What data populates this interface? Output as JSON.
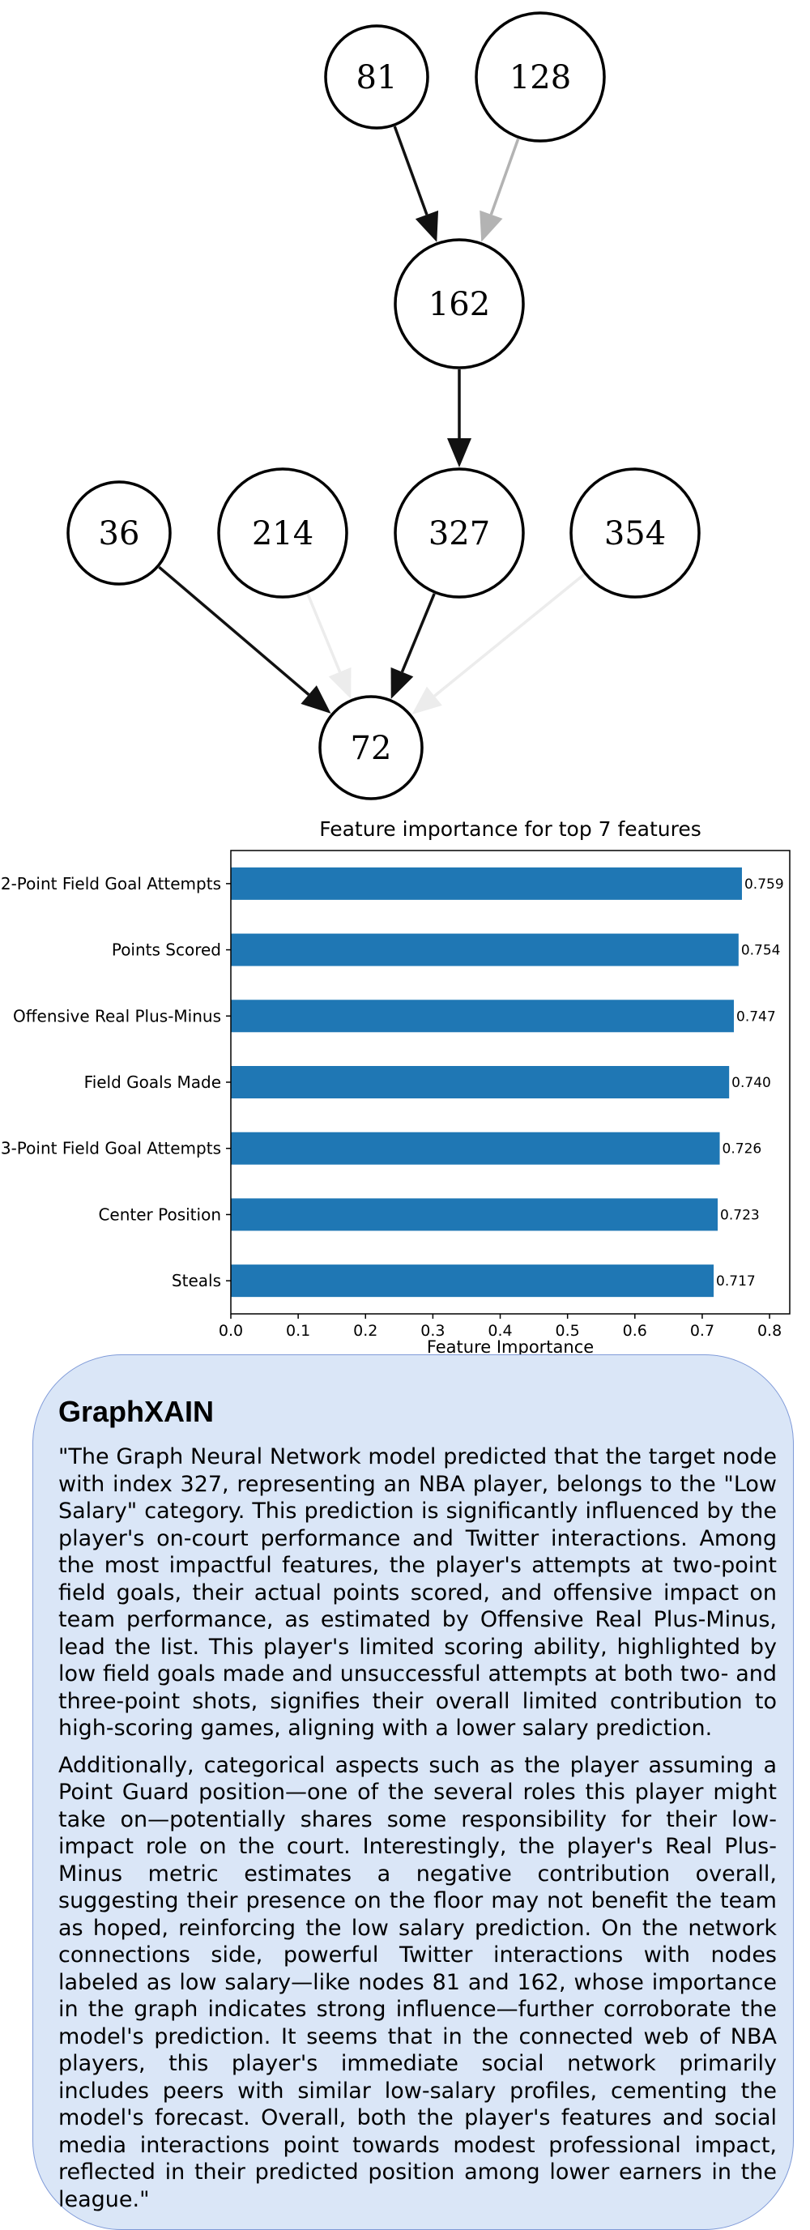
{
  "graph": {
    "nodes": [
      {
        "id": "n81",
        "label": "81"
      },
      {
        "id": "n128",
        "label": "128"
      },
      {
        "id": "n162",
        "label": "162"
      },
      {
        "id": "n36",
        "label": "36"
      },
      {
        "id": "n214",
        "label": "214"
      },
      {
        "id": "n327",
        "label": "327"
      },
      {
        "id": "n354",
        "label": "354"
      },
      {
        "id": "n72",
        "label": "72"
      }
    ],
    "edges": [
      {
        "from": "n81",
        "to": "n162",
        "color": "#111111"
      },
      {
        "from": "n128",
        "to": "n162",
        "color": "#b3b3b3"
      },
      {
        "from": "n162",
        "to": "n327",
        "color": "#111111"
      },
      {
        "from": "n36",
        "to": "n72",
        "color": "#111111"
      },
      {
        "from": "n214",
        "to": "n72",
        "color": "#ececec"
      },
      {
        "from": "n327",
        "to": "n72",
        "color": "#111111"
      },
      {
        "from": "n354",
        "to": "n72",
        "color": "#ececec"
      }
    ]
  },
  "chart_data": {
    "type": "bar",
    "orientation": "horizontal",
    "title": "Feature importance for top 7 features",
    "xlabel": "Feature Importance",
    "ylabel": "",
    "xlim": [
      0,
      0.83
    ],
    "xticks": [
      "0.0",
      "0.1",
      "0.2",
      "0.3",
      "0.4",
      "0.5",
      "0.6",
      "0.7",
      "0.8"
    ],
    "categories": [
      "2-Point Field Goal Attempts",
      "Points Scored",
      "Offensive Real Plus-Minus",
      "Field Goals Made",
      "3-Point Field Goal Attempts",
      "Center Position",
      "Steals"
    ],
    "values": [
      0.759,
      0.754,
      0.747,
      0.74,
      0.726,
      0.723,
      0.717
    ],
    "value_labels": [
      "0.759",
      "0.754",
      "0.747",
      "0.740",
      "0.726",
      "0.723",
      "0.717"
    ],
    "bar_color": "#1f77b4",
    "grid": false
  },
  "explanation": {
    "title": "GraphXAIN",
    "paragraphs": [
      "\"The Graph Neural Network model predicted that the target node with index 327, representing an NBA player, belongs to the \"Low Salary\" category. This prediction is significantly influenced by the player's on-court performance and Twitter interactions. Among the most impactful features, the player's attempts at two-point field goals, their actual points scored, and offensive impact on team performance, as estimated by Offensive Real Plus-Minus, lead the list. This player's limited scoring ability, highlighted by low field goals made and unsuccessful attempts at both two- and three-point shots, signifies their overall limited contribution to high-scoring games, aligning with a lower salary prediction.",
      "Additionally, categorical aspects such as the player assuming a Point Guard position—one of the several roles this player might take on—potentially shares some responsibility for their low-impact role on the court. Interestingly, the player's Real Plus-Minus metric estimates a negative contribution overall, suggesting their presence on the floor may not benefit the team as hoped, reinforcing the low salary prediction. On the network connections side, powerful Twitter interactions with nodes labeled as low salary—like nodes 81 and 162, whose importance in the graph indicates strong influence—further corroborate the model's prediction. It seems that in the connected web of NBA players, this player's immediate social network primarily includes peers with similar low-salary profiles, cementing the model's forecast. Overall, both the player's features and social media interactions point towards modest professional impact, reflected in their predicted position among lower earners in the league.\""
    ]
  }
}
